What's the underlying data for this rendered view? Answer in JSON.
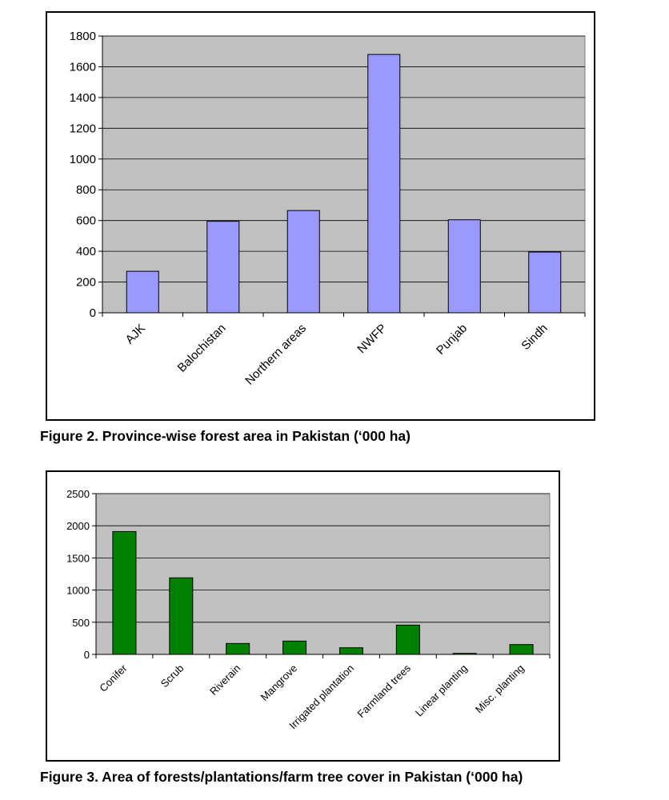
{
  "figures": [
    {
      "caption": "Figure 2. Province-wise forest area in Pakistan (‘000 ha)"
    },
    {
      "caption": "Figure 3. Area of forests/plantations/farm tree cover in Pakistan (‘000 ha)"
    }
  ],
  "chart_data": [
    {
      "type": "bar",
      "title": "",
      "xlabel": "",
      "ylabel": "",
      "categories": [
        "AJK",
        "Balochistan",
        "Northern areas",
        "NWFP",
        "Punjab",
        "Sindh"
      ],
      "values": [
        270,
        595,
        665,
        1680,
        605,
        395
      ],
      "ylim": [
        0,
        1800
      ],
      "yticks": [
        0,
        200,
        400,
        600,
        800,
        1000,
        1200,
        1400,
        1600,
        1800
      ],
      "grid": true,
      "legend": "none",
      "bar_color": "#9999ff",
      "plot_background": "#c0c0c0"
    },
    {
      "type": "bar",
      "title": "",
      "xlabel": "",
      "ylabel": "",
      "categories": [
        "Conifer",
        "Scrub",
        "Riverain",
        "Mangrove",
        "Irrigated plantation",
        "Farmland trees",
        "Linear planting",
        "Misc. planting"
      ],
      "values": [
        1910,
        1190,
        170,
        207,
        103,
        455,
        16,
        153
      ],
      "ylim": [
        0,
        2500
      ],
      "yticks": [
        0,
        500,
        1000,
        1500,
        2000,
        2500
      ],
      "grid": true,
      "legend": "none",
      "bar_color": "#008000",
      "plot_background": "#c0c0c0"
    }
  ]
}
